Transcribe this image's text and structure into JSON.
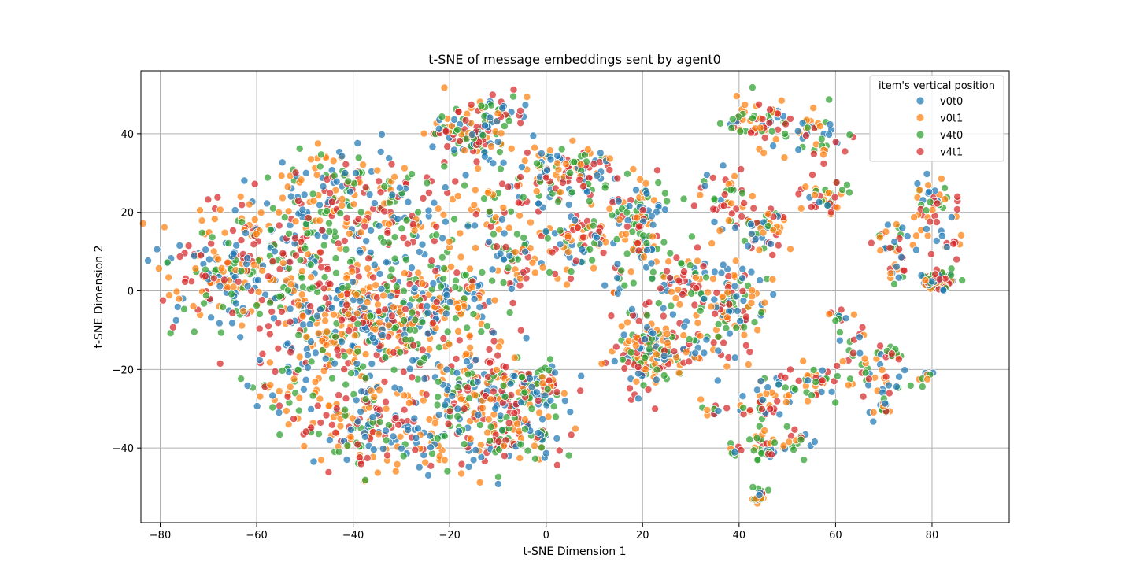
{
  "chart_data": {
    "type": "scatter",
    "title": "t-SNE of message embeddings sent by agent0",
    "xlabel": "t-SNE Dimension 1",
    "ylabel": "t-SNE Dimension 2",
    "xlim": [
      -84,
      96
    ],
    "ylim": [
      -59,
      56
    ],
    "xticks": [
      -80,
      -60,
      -40,
      -20,
      0,
      20,
      40,
      60,
      80
    ],
    "yticks": [
      -40,
      -20,
      0,
      20,
      40
    ],
    "grid": true,
    "legend": {
      "title": "item's vertical position",
      "position": "upper right"
    },
    "series": [
      {
        "name": "v0t0",
        "color": "#1f77b4"
      },
      {
        "name": "v0t1",
        "color": "#ff7f0e"
      },
      {
        "name": "v4t0",
        "color": "#2ca02c"
      },
      {
        "name": "v4t1",
        "color": "#d62728"
      }
    ],
    "clusters": [
      {
        "x": -65,
        "y": 5,
        "sx": 7,
        "sy": 8,
        "n": 230
      },
      {
        "x": -52,
        "y": 8,
        "sx": 6,
        "sy": 9,
        "n": 140
      },
      {
        "x": -42,
        "y": 24,
        "sx": 6,
        "sy": 6,
        "n": 150
      },
      {
        "x": -30,
        "y": 18,
        "sx": 6,
        "sy": 7,
        "n": 90
      },
      {
        "x": -35,
        "y": -6,
        "sx": 8,
        "sy": 6,
        "n": 280
      },
      {
        "x": -22,
        "y": -4,
        "sx": 6,
        "sy": 8,
        "n": 150
      },
      {
        "x": -45,
        "y": -15,
        "sx": 6,
        "sy": 8,
        "n": 90
      },
      {
        "x": -38,
        "y": -35,
        "sx": 6,
        "sy": 6,
        "n": 140
      },
      {
        "x": -22,
        "y": -33,
        "sx": 7,
        "sy": 7,
        "n": 150
      },
      {
        "x": -12,
        "y": -25,
        "sx": 6,
        "sy": 6,
        "n": 110
      },
      {
        "x": -3,
        "y": -25,
        "sx": 4,
        "sy": 4,
        "n": 100
      },
      {
        "x": -6,
        "y": -38,
        "sx": 5,
        "sy": 3,
        "n": 80
      },
      {
        "x": -14,
        "y": 38,
        "sx": 3,
        "sy": 4,
        "n": 80
      },
      {
        "x": -10,
        "y": 45,
        "sx": 3,
        "sy": 3,
        "n": 40
      },
      {
        "x": -20,
        "y": 42,
        "sx": 3,
        "sy": 3,
        "n": 30
      },
      {
        "x": -9,
        "y": 20,
        "sx": 6,
        "sy": 6,
        "n": 60
      },
      {
        "x": -6,
        "y": 6,
        "sx": 4,
        "sy": 5,
        "n": 50
      },
      {
        "x": 3,
        "y": 31,
        "sx": 4,
        "sy": 4,
        "n": 90
      },
      {
        "x": 9,
        "y": 30,
        "sx": 3,
        "sy": 4,
        "n": 40
      },
      {
        "x": 6,
        "y": 12,
        "sx": 3.5,
        "sy": 4,
        "n": 80
      },
      {
        "x": 20,
        "y": 21,
        "sx": 3,
        "sy": 5,
        "n": 70
      },
      {
        "x": 20,
        "y": 11,
        "sx": 2,
        "sy": 3,
        "n": 35
      },
      {
        "x": 14,
        "y": 3,
        "sx": 2,
        "sy": 2,
        "n": 15
      },
      {
        "x": 21,
        "y": -15,
        "sx": 3.5,
        "sy": 5,
        "n": 160
      },
      {
        "x": 29,
        "y": 3,
        "sx": 3.5,
        "sy": 3.5,
        "n": 60
      },
      {
        "x": 34,
        "y": -14,
        "sx": 4,
        "sy": 4,
        "n": 40
      },
      {
        "x": 39,
        "y": -3,
        "sx": 3.5,
        "sy": 5,
        "n": 100
      },
      {
        "x": 37,
        "y": 24,
        "sx": 2.5,
        "sy": 3,
        "n": 40
      },
      {
        "x": 45,
        "y": 16,
        "sx": 3,
        "sy": 3,
        "n": 60
      },
      {
        "x": 43,
        "y": 43,
        "sx": 4,
        "sy": 3,
        "n": 60
      },
      {
        "x": 55,
        "y": 40,
        "sx": 4,
        "sy": 4,
        "n": 50
      },
      {
        "x": 57,
        "y": 24,
        "sx": 2.5,
        "sy": 2.5,
        "n": 35
      },
      {
        "x": 45,
        "y": -28,
        "sx": 3,
        "sy": 3,
        "n": 40
      },
      {
        "x": 46,
        "y": -40,
        "sx": 2,
        "sy": 2,
        "n": 30
      },
      {
        "x": 44,
        "y": -52,
        "sx": 1,
        "sy": 0.8,
        "n": 20
      },
      {
        "x": 39,
        "y": -41,
        "sx": 0.6,
        "sy": 0.6,
        "n": 10
      },
      {
        "x": 55,
        "y": -24,
        "sx": 3,
        "sy": 2.5,
        "n": 40
      },
      {
        "x": 51,
        "y": -39,
        "sx": 2,
        "sy": 2,
        "n": 20
      },
      {
        "x": 68,
        "y": -22,
        "sx": 3,
        "sy": 4,
        "n": 40
      },
      {
        "x": 72,
        "y": -16,
        "sx": 0.8,
        "sy": 0.8,
        "n": 12
      },
      {
        "x": 70,
        "y": -29,
        "sx": 1.2,
        "sy": 1,
        "n": 12
      },
      {
        "x": 79,
        "y": 23,
        "sx": 3,
        "sy": 3,
        "n": 40
      },
      {
        "x": 73,
        "y": 13,
        "sx": 3,
        "sy": 3,
        "n": 30
      },
      {
        "x": 81,
        "y": 2.5,
        "sx": 1.6,
        "sy": 1.3,
        "n": 90
      },
      {
        "x": 84,
        "y": 12,
        "sx": 1.5,
        "sy": 1.5,
        "n": 12
      },
      {
        "x": 61,
        "y": -7,
        "sx": 1.5,
        "sy": 1.5,
        "n": 12
      },
      {
        "x": 36,
        "y": -30,
        "sx": 2,
        "sy": 1.5,
        "n": 10
      },
      {
        "x": -55,
        "y": -25,
        "sx": 4,
        "sy": 5,
        "n": 40
      },
      {
        "x": 72,
        "y": 4,
        "sx": 1.5,
        "sy": 1.5,
        "n": 12
      },
      {
        "x": 79,
        "y": -22,
        "sx": 1,
        "sy": 1.5,
        "n": 8
      },
      {
        "x": 64,
        "y": -13,
        "sx": 1.5,
        "sy": 2,
        "n": 12
      }
    ]
  }
}
